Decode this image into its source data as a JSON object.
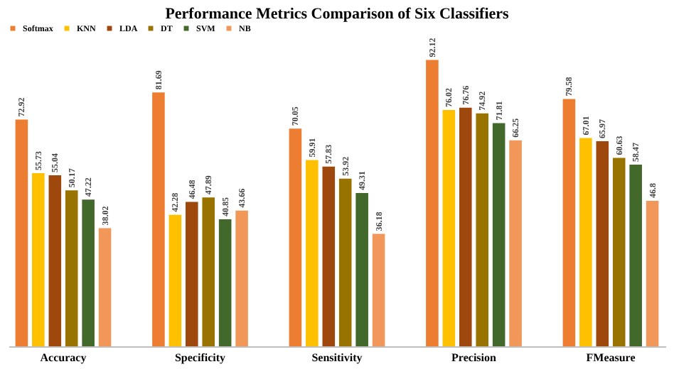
{
  "chart_data": {
    "type": "bar",
    "title": "Performance Metrics Comparison of Six Classifiers",
    "categories": [
      "Accuracy",
      "Specificity",
      "Sensitivity",
      "Precision",
      "FMeasure"
    ],
    "series": [
      {
        "name": "Softmax",
        "color": "#ed7d31",
        "values": [
          72.92,
          81.69,
          70.05,
          92.12,
          79.58
        ]
      },
      {
        "name": "KNN",
        "color": "#ffc000",
        "values": [
          55.73,
          42.28,
          59.91,
          76.02,
          67.01
        ]
      },
      {
        "name": "LDA",
        "color": "#9e480e",
        "values": [
          55.04,
          46.48,
          57.83,
          76.76,
          65.97
        ]
      },
      {
        "name": "DT",
        "color": "#997300",
        "values": [
          50.17,
          47.89,
          53.92,
          74.92,
          60.63
        ]
      },
      {
        "name": "SVM",
        "color": "#43682b",
        "values": [
          47.22,
          40.85,
          49.31,
          71.81,
          58.47
        ]
      },
      {
        "name": "NB",
        "color": "#f1975a",
        "values": [
          38.02,
          43.66,
          36.18,
          66.25,
          46.8
        ]
      }
    ],
    "data_labels": true,
    "legend": "top",
    "grid": false,
    "tick_labels": "x"
  }
}
